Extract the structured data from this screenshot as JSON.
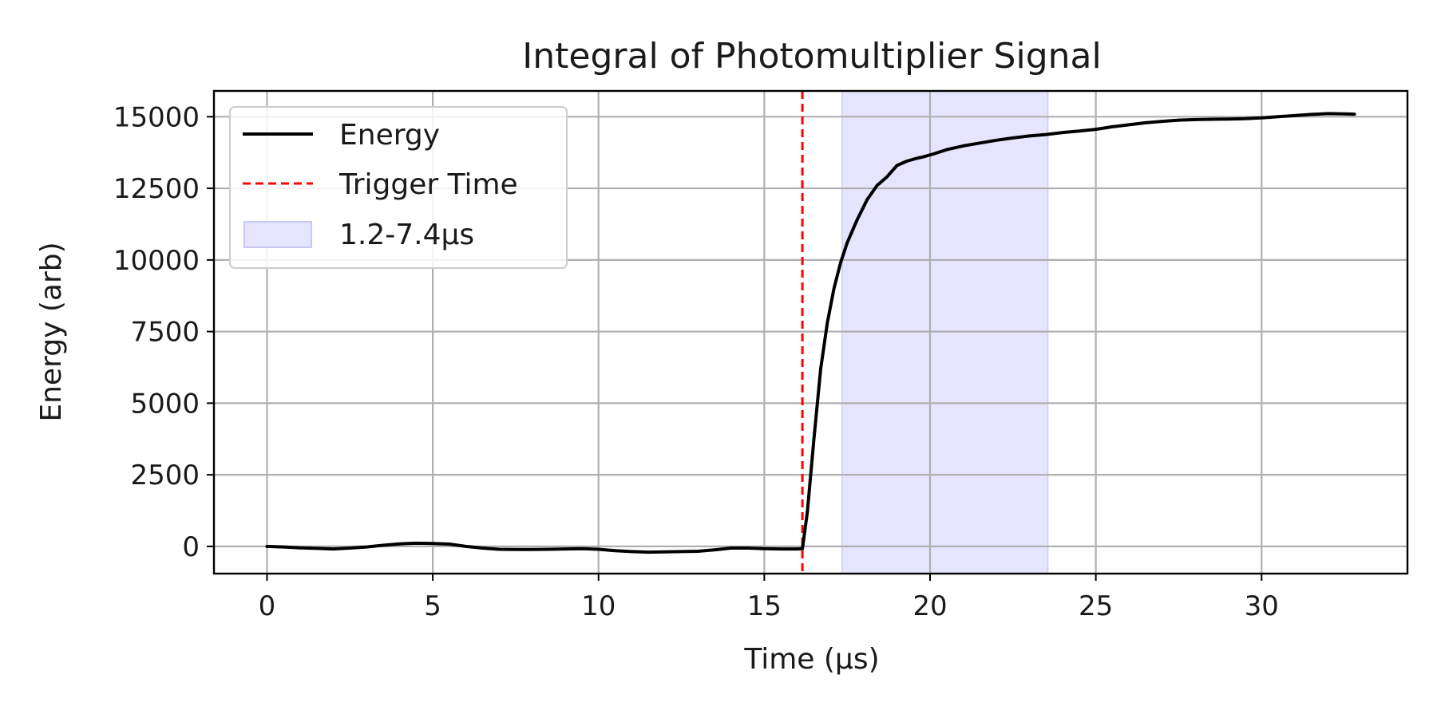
{
  "chart_data": {
    "type": "line",
    "title": "Integral of Photomultiplier Signal",
    "xlabel": "Time (μs)",
    "ylabel": "Energy (arb)",
    "xlim": [
      -1.6,
      34.4
    ],
    "ylim": [
      -950,
      15900
    ],
    "xticks": [
      0,
      5,
      10,
      15,
      20,
      25,
      30
    ],
    "yticks": [
      0,
      2500,
      5000,
      7500,
      10000,
      12500,
      15000
    ],
    "grid": true,
    "legend_position": "upper-left",
    "series": [
      {
        "name": "Energy",
        "color": "#000000",
        "style": "solid",
        "x": [
          0,
          0.5,
          1.0,
          1.5,
          2.0,
          2.5,
          3.0,
          3.5,
          4.0,
          4.5,
          5.0,
          5.5,
          6.0,
          6.5,
          7.0,
          7.5,
          8.0,
          8.5,
          9.0,
          9.5,
          10.0,
          10.5,
          11.0,
          11.5,
          12.0,
          12.5,
          13.0,
          13.5,
          14.0,
          14.5,
          15.0,
          15.5,
          16.0,
          16.15,
          16.3,
          16.5,
          16.7,
          16.9,
          17.1,
          17.3,
          17.5,
          17.8,
          18.1,
          18.4,
          18.7,
          19.0,
          19.3,
          19.6,
          19.8,
          20.1,
          20.5,
          21.0,
          21.5,
          22.0,
          22.5,
          23.0,
          23.5,
          24.0,
          24.5,
          25.0,
          25.5,
          26.0,
          26.5,
          27.0,
          27.5,
          28.0,
          28.5,
          29.0,
          29.5,
          30.0,
          30.5,
          31.0,
          31.5,
          32.0,
          32.5,
          32.8
        ],
        "y": [
          0,
          -20,
          -50,
          -70,
          -90,
          -60,
          -20,
          40,
          90,
          110,
          100,
          80,
          0,
          -60,
          -100,
          -110,
          -110,
          -100,
          -90,
          -80,
          -100,
          -150,
          -180,
          -200,
          -190,
          -180,
          -170,
          -120,
          -60,
          -60,
          -80,
          -90,
          -90,
          -80,
          1200,
          3800,
          6200,
          7800,
          9000,
          9900,
          10600,
          11400,
          12100,
          12600,
          12900,
          13300,
          13450,
          13550,
          13600,
          13700,
          13850,
          13980,
          14080,
          14180,
          14260,
          14330,
          14380,
          14450,
          14500,
          14560,
          14650,
          14720,
          14790,
          14840,
          14880,
          14900,
          14910,
          14920,
          14930,
          14960,
          15000,
          15040,
          15080,
          15110,
          15100,
          15090
        ]
      },
      {
        "name": "Trigger Time",
        "color": "#ff0000",
        "style": "dashed",
        "x_value": 16.15
      },
      {
        "name": "1.2-7.4μs",
        "color": "#7f7fff",
        "style": "span",
        "x_range": [
          17.35,
          23.55
        ]
      }
    ]
  }
}
